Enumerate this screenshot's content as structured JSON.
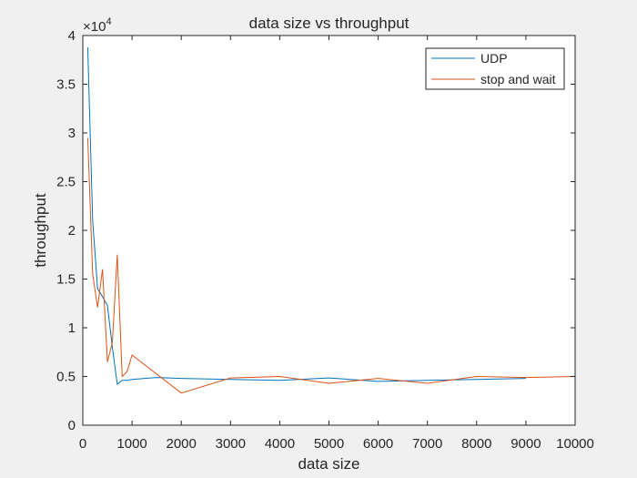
{
  "chart_data": {
    "type": "line",
    "title": "data size vs throughput",
    "xlabel": "data size",
    "ylabel": "throughput",
    "xlim": [
      0,
      10000
    ],
    "ylim": [
      0,
      40000
    ],
    "xticks": [
      0,
      1000,
      2000,
      3000,
      4000,
      5000,
      6000,
      7000,
      8000,
      9000,
      10000
    ],
    "yticks": [
      0,
      5000,
      10000,
      15000,
      20000,
      25000,
      30000,
      35000,
      40000
    ],
    "xtick_labels": [
      "0",
      "1000",
      "2000",
      "3000",
      "4000",
      "5000",
      "6000",
      "7000",
      "8000",
      "9000",
      "10000"
    ],
    "ytick_labels": [
      "0",
      "0.5",
      "1",
      "1.5",
      "2",
      "2.5",
      "3",
      "3.5",
      "4"
    ],
    "y_exponent_base": "×10",
    "y_exponent_power": "4",
    "grid": false,
    "legend_position": "top-right",
    "series": [
      {
        "name": "UDP",
        "color": "#0072BD",
        "x": [
          100,
          200,
          300,
          400,
          500,
          600,
          700,
          800,
          900,
          1000,
          1500,
          2000,
          3000,
          4000,
          5000,
          6000,
          7000,
          8000,
          9000
        ],
        "y": [
          38800,
          21000,
          14000,
          13200,
          12300,
          8000,
          4200,
          4600,
          4600,
          4700,
          4900,
          4800,
          4700,
          4600,
          4850,
          4500,
          4600,
          4700,
          4800
        ]
      },
      {
        "name": "stop and wait",
        "color": "#D95319",
        "x": [
          100,
          200,
          300,
          400,
          500,
          600,
          700,
          800,
          900,
          1000,
          2000,
          3000,
          4000,
          5000,
          6000,
          7000,
          8000,
          9000,
          10000
        ],
        "y": [
          29500,
          15500,
          12100,
          16000,
          6500,
          8500,
          17500,
          5000,
          5500,
          7200,
          3300,
          4850,
          5000,
          4300,
          4800,
          4300,
          5000,
          4900,
          5000
        ]
      }
    ]
  }
}
